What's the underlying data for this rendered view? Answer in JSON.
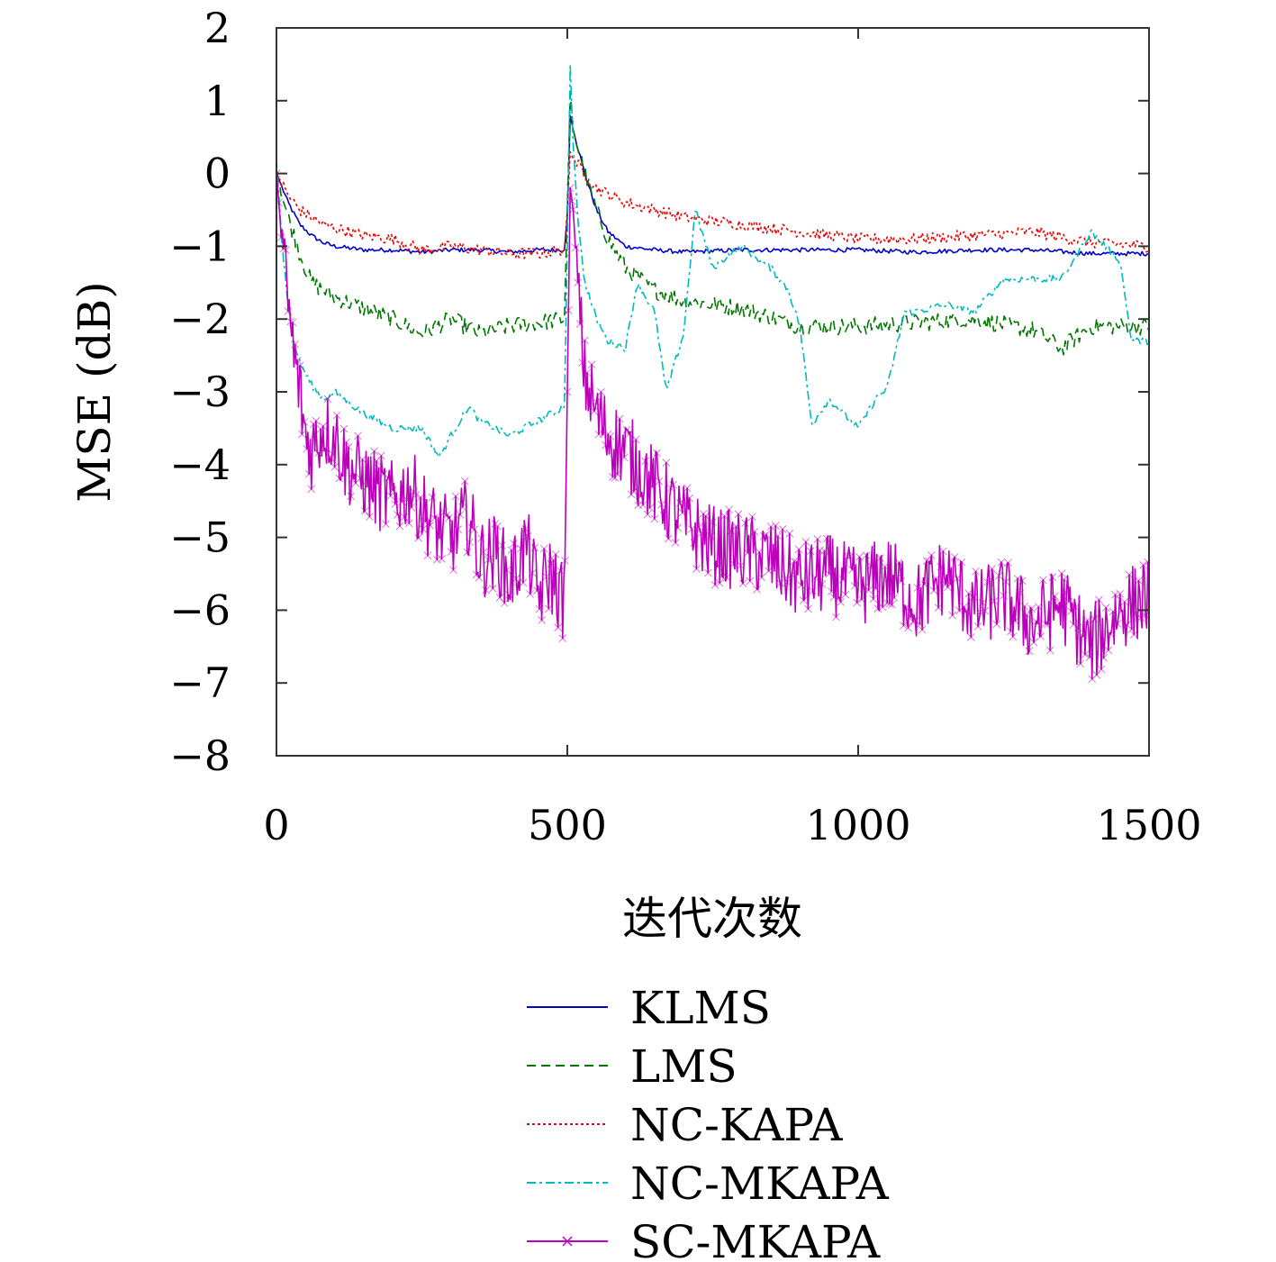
{
  "chart_data": {
    "type": "line",
    "title": "",
    "xlabel": "迭代次数",
    "ylabel": "MSE (dB)",
    "xlim": [
      0,
      1500
    ],
    "ylim": [
      -8,
      2
    ],
    "xticks": [
      0,
      500,
      1000,
      1500
    ],
    "yticks": [
      2,
      1,
      0,
      -1,
      -2,
      -3,
      -4,
      -5,
      -6,
      -7,
      -8
    ],
    "xtick_labels": [
      "0",
      "500",
      "1000",
      "1500"
    ],
    "ytick_labels": [
      "2",
      "1",
      "0",
      "−1",
      "−2",
      "−3",
      "−4",
      "−5",
      "−6",
      "−7",
      "−8"
    ],
    "grid": false,
    "legend_position": "below",
    "series": [
      {
        "name": "KLMS",
        "color": "#0000cc",
        "style": "solid",
        "x": [
          0,
          20,
          40,
          60,
          80,
          100,
          150,
          200,
          250,
          300,
          350,
          400,
          450,
          495,
          500,
          505,
          510,
          530,
          550,
          570,
          600,
          650,
          700,
          800,
          900,
          1000,
          1100,
          1200,
          1300,
          1400,
          1500
        ],
        "y": [
          0.0,
          -0.4,
          -0.7,
          -0.85,
          -0.95,
          -1.0,
          -1.05,
          -1.05,
          -1.08,
          -1.05,
          -1.05,
          -1.08,
          -1.05,
          -1.05,
          -0.6,
          0.8,
          0.6,
          0.0,
          -0.5,
          -0.8,
          -1.0,
          -1.05,
          -1.08,
          -1.05,
          -1.05,
          -1.05,
          -1.08,
          -1.05,
          -1.05,
          -1.1,
          -1.1
        ]
      },
      {
        "name": "LMS",
        "color": "#007700",
        "style": "dashed",
        "x": [
          0,
          20,
          40,
          60,
          80,
          100,
          150,
          200,
          250,
          300,
          350,
          400,
          450,
          495,
          500,
          505,
          510,
          530,
          550,
          570,
          600,
          650,
          700,
          800,
          900,
          1000,
          1100,
          1200,
          1300,
          1350,
          1400,
          1450,
          1500
        ],
        "y": [
          0.0,
          -0.6,
          -1.1,
          -1.5,
          -1.6,
          -1.7,
          -1.85,
          -2.0,
          -2.2,
          -2.0,
          -2.2,
          -2.1,
          -2.05,
          -2.0,
          -0.5,
          1.1,
          0.6,
          0.0,
          -0.5,
          -0.9,
          -1.3,
          -1.6,
          -1.75,
          -1.85,
          -2.1,
          -2.1,
          -2.05,
          -2.0,
          -2.15,
          -2.4,
          -2.1,
          -2.1,
          -2.1
        ]
      },
      {
        "name": "NC-KAPA",
        "color": "#ee0000",
        "style": "dotted",
        "x": [
          0,
          20,
          40,
          60,
          80,
          100,
          150,
          200,
          250,
          300,
          350,
          400,
          450,
          495,
          500,
          505,
          510,
          530,
          550,
          600,
          650,
          700,
          800,
          900,
          1000,
          1100,
          1200,
          1300,
          1400,
          1500
        ],
        "y": [
          0.0,
          -0.3,
          -0.5,
          -0.6,
          -0.7,
          -0.75,
          -0.85,
          -0.9,
          -1.05,
          -1.0,
          -1.05,
          -1.1,
          -1.1,
          -1.05,
          -0.5,
          0.3,
          0.2,
          0.0,
          -0.2,
          -0.4,
          -0.5,
          -0.6,
          -0.7,
          -0.8,
          -0.9,
          -0.9,
          -0.85,
          -0.8,
          -0.95,
          -1.0
        ]
      },
      {
        "name": "NC-MKAPA",
        "color": "#00bbbb",
        "style": "dashdot",
        "x": [
          0,
          10,
          20,
          30,
          40,
          60,
          80,
          100,
          150,
          200,
          250,
          280,
          300,
          330,
          350,
          400,
          450,
          495,
          500,
          505,
          510,
          520,
          530,
          550,
          570,
          600,
          620,
          650,
          670,
          700,
          720,
          750,
          780,
          800,
          850,
          880,
          900,
          920,
          950,
          1000,
          1030,
          1050,
          1080,
          1100,
          1150,
          1200,
          1250,
          1300,
          1350,
          1400,
          1450,
          1470,
          1500
        ],
        "y": [
          0.2,
          -1.0,
          -1.8,
          -2.3,
          -2.6,
          -2.9,
          -3.1,
          -3.0,
          -3.3,
          -3.5,
          -3.5,
          -3.9,
          -3.6,
          -3.2,
          -3.4,
          -3.6,
          -3.4,
          -3.2,
          -1.0,
          1.5,
          0.4,
          -0.8,
          -1.5,
          -2.0,
          -2.3,
          -2.4,
          -1.5,
          -1.9,
          -3.0,
          -2.2,
          -0.5,
          -1.3,
          -1.1,
          -1.0,
          -1.3,
          -1.6,
          -2.1,
          -3.45,
          -3.1,
          -3.5,
          -3.1,
          -2.95,
          -1.9,
          -1.9,
          -1.8,
          -1.9,
          -1.45,
          -1.45,
          -1.45,
          -0.8,
          -1.2,
          -2.3,
          -2.3
        ]
      },
      {
        "name": "SC-MKAPA",
        "color": "#bb00bb",
        "style": "solid-x",
        "x": [
          0,
          10,
          20,
          30,
          40,
          50,
          60,
          80,
          100,
          120,
          150,
          180,
          200,
          230,
          250,
          280,
          300,
          330,
          350,
          380,
          400,
          430,
          450,
          470,
          495,
          500,
          505,
          510,
          520,
          530,
          550,
          570,
          600,
          630,
          650,
          680,
          700,
          750,
          800,
          850,
          900,
          950,
          1000,
          1050,
          1100,
          1150,
          1200,
          1250,
          1300,
          1350,
          1400,
          1450,
          1500
        ],
        "y": [
          0.0,
          -1.0,
          -1.8,
          -2.5,
          -3.0,
          -3.6,
          -3.8,
          -3.5,
          -3.6,
          -4.0,
          -4.2,
          -4.4,
          -4.5,
          -4.3,
          -4.6,
          -4.9,
          -5.0,
          -4.7,
          -5.3,
          -5.2,
          -5.6,
          -5.1,
          -5.8,
          -5.5,
          -5.9,
          -3.0,
          -0.2,
          -0.5,
          -1.8,
          -2.8,
          -3.3,
          -3.6,
          -3.8,
          -4.1,
          -4.3,
          -4.6,
          -4.8,
          -5.1,
          -5.2,
          -5.3,
          -5.6,
          -5.5,
          -5.7,
          -5.5,
          -5.9,
          -5.5,
          -6.0,
          -5.8,
          -6.2,
          -5.9,
          -6.5,
          -6.0,
          -5.8
        ]
      }
    ]
  }
}
